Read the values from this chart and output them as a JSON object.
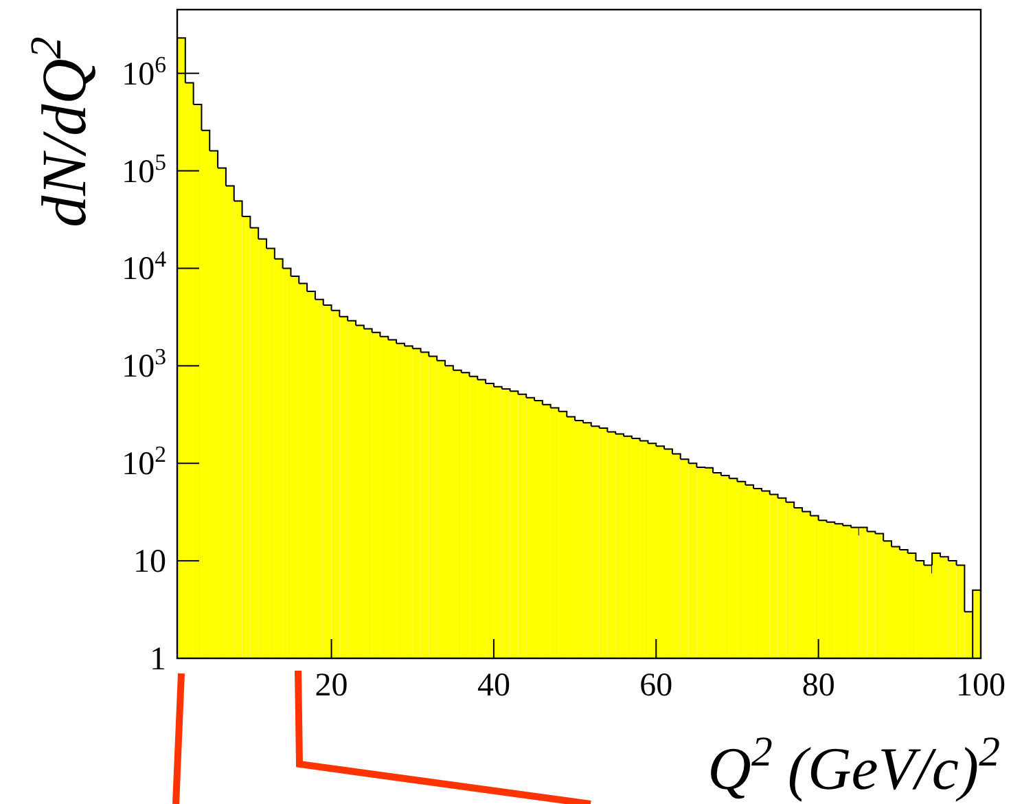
{
  "chart_data": {
    "type": "histogram",
    "xlabel": "Q$^{2}$ (GeV/c)$^{2}$",
    "ylabel": "dN/dQ$^{2}$",
    "color": "#ffff00",
    "log": true,
    "grid": false,
    "bins": [
      1,
      2,
      3,
      4,
      5,
      6,
      7,
      8,
      9,
      10,
      11,
      12,
      13,
      14,
      15,
      16,
      17,
      18,
      19,
      20,
      21,
      22,
      23,
      24,
      25,
      26,
      27,
      28,
      29,
      30,
      31,
      32,
      33,
      34,
      35,
      36,
      37,
      38,
      39,
      40,
      41,
      42,
      43,
      44,
      45,
      46,
      47,
      48,
      49,
      50,
      51,
      52,
      53,
      54,
      55,
      56,
      57,
      58,
      59,
      60,
      61,
      62,
      63,
      64,
      65,
      66,
      67,
      68,
      69,
      70,
      71,
      72,
      73,
      74,
      75,
      76,
      77,
      78,
      79,
      80,
      81,
      82,
      83,
      84,
      85,
      86,
      87,
      88,
      89,
      90,
      91,
      92,
      93,
      94,
      95,
      96,
      97,
      98,
      99,
      100
    ],
    "values": [
      2300000,
      800000,
      480000,
      260000,
      160000,
      107000,
      70000,
      49000,
      34000,
      26000,
      20000,
      16000,
      12500,
      10000,
      8300,
      7000,
      5800,
      4800,
      4200,
      3700,
      3200,
      2900,
      2600,
      2400,
      2200,
      2000,
      1850,
      1700,
      1600,
      1500,
      1380,
      1250,
      1130,
      1000,
      900,
      850,
      780,
      720,
      660,
      610,
      580,
      550,
      510,
      470,
      440,
      400,
      370,
      340,
      300,
      275,
      260,
      240,
      230,
      210,
      200,
      190,
      180,
      170,
      160,
      150,
      140,
      125,
      110,
      100,
      91,
      90,
      80,
      75,
      70,
      65,
      60,
      55,
      52,
      48,
      44,
      40,
      35,
      32,
      29,
      26,
      25,
      24,
      23,
      22,
      22,
      20,
      19,
      16,
      14,
      13,
      12,
      10,
      9,
      12,
      11,
      10,
      9,
      3,
      5
    ],
    "xlim": [
      1,
      100
    ],
    "xticks": [
      20,
      40,
      60,
      80,
      100
    ],
    "ylim": [
      1,
      4500000
    ],
    "yticks": [
      1,
      10,
      {
        "value": 100,
        "label": "10$^{2}$"
      },
      {
        "value": 1000,
        "label": "10$^{3}$"
      },
      {
        "value": 10000,
        "label": "10$^{4}$"
      },
      {
        "value": 100000,
        "label": "10$^{5}$"
      },
      {
        "value": 1000000,
        "label": "10$^{6}$"
      }
    ]
  }
}
